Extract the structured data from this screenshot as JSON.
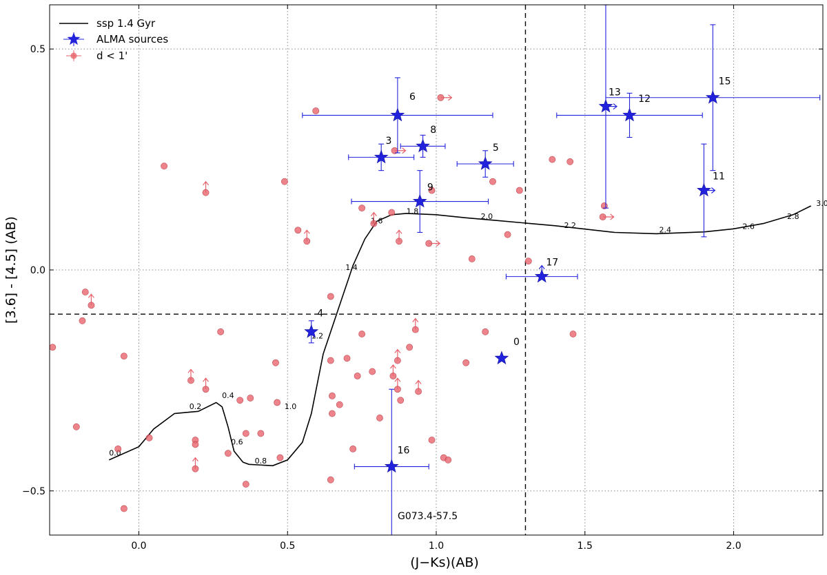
{
  "chart_data": {
    "type": "scatter",
    "xlabel": "(J−Ks)(AB)",
    "ylabel": "[3.6] - [4.5] (AB)",
    "xlim": [
      -0.3,
      2.3
    ],
    "ylim": [
      -0.6,
      0.6
    ],
    "x_ticks": [
      0.0,
      0.5,
      1.0,
      1.5,
      2.0
    ],
    "x_tick_labels": [
      "0.0",
      "0.5",
      "1.0",
      "1.5",
      "2.0"
    ],
    "y_ticks": [
      0.5,
      0.0,
      -0.5
    ],
    "y_tick_labels": [
      "0.5",
      "0.0",
      "−0.5"
    ],
    "grid": true,
    "field_label": "G073.4-57.5",
    "legend_position": "top-left",
    "legend": {
      "ssp": "ssp 1.4 Gyr",
      "alma": "ALMA sources",
      "neighbors": "d < 1'"
    },
    "cut_lines": {
      "x": 1.3,
      "y": -0.1
    },
    "colors": {
      "ssp": "#000000",
      "alma": "#2222dd",
      "neighbors": "#e8606a"
    },
    "ssp_track": {
      "x": [
        -0.1,
        0.0,
        0.05,
        0.12,
        0.2,
        0.26,
        0.28,
        0.3,
        0.32,
        0.35,
        0.37,
        0.45,
        0.5,
        0.55,
        0.58,
        0.62,
        0.68,
        0.72,
        0.76,
        0.8,
        0.85,
        0.9,
        1.0,
        1.1,
        1.2,
        1.4,
        1.6,
        1.74,
        1.9,
        2.0,
        2.1,
        2.2,
        2.26
      ],
      "y": [
        -0.43,
        -0.4,
        -0.36,
        -0.325,
        -0.32,
        -0.3,
        -0.31,
        -0.355,
        -0.41,
        -0.435,
        -0.44,
        -0.443,
        -0.43,
        -0.39,
        -0.325,
        -0.19,
        -0.07,
        0.01,
        0.07,
        0.11,
        0.125,
        0.128,
        0.125,
        0.118,
        0.112,
        0.1,
        0.085,
        0.082,
        0.086,
        0.093,
        0.105,
        0.125,
        0.145
      ]
    },
    "age_labels": [
      {
        "t": "0.0",
        "x": -0.08,
        "y": -0.42
      },
      {
        "t": "0.2",
        "x": 0.19,
        "y": -0.315
      },
      {
        "t": "0.4",
        "x": 0.3,
        "y": -0.29
      },
      {
        "t": "0.6",
        "x": 0.33,
        "y": -0.395
      },
      {
        "t": "0.8",
        "x": 0.41,
        "y": -0.438
      },
      {
        "t": "1.0",
        "x": 0.51,
        "y": -0.315
      },
      {
        "t": "1.2",
        "x": 0.6,
        "y": -0.155
      },
      {
        "t": "1.4",
        "x": 0.715,
        "y": 0.0
      },
      {
        "t": "1.6",
        "x": 0.8,
        "y": 0.105
      },
      {
        "t": "1.8",
        "x": 0.92,
        "y": 0.127
      },
      {
        "t": "2.0",
        "x": 1.17,
        "y": 0.115
      },
      {
        "t": "2.2",
        "x": 1.45,
        "y": 0.095
      },
      {
        "t": "2.4",
        "x": 1.77,
        "y": 0.085
      },
      {
        "t": "2.6",
        "x": 2.05,
        "y": 0.093
      },
      {
        "t": "2.8",
        "x": 2.2,
        "y": 0.115
      },
      {
        "t": "3.0",
        "x": 2.33,
        "y": 0.145
      }
    ],
    "alma_sources": [
      {
        "id": "0",
        "x": 1.22,
        "y": -0.2,
        "xerr": 0,
        "yerr": 0,
        "arrow": "",
        "lx": 1.27,
        "ly": -0.17
      },
      {
        "id": "3",
        "x": 0.815,
        "y": 0.255,
        "xerr": 0.11,
        "yerr": 0.03,
        "arrow": "",
        "lx": 0.84,
        "ly": 0.285
      },
      {
        "id": "4",
        "x": 0.58,
        "y": -0.14,
        "xerr": 0,
        "yerr": 0.025,
        "arrow": "",
        "lx": 0.61,
        "ly": -0.105
      },
      {
        "id": "5",
        "x": 1.165,
        "y": 0.24,
        "xerr": 0.095,
        "yerr": 0.03,
        "arrow": "",
        "lx": 1.2,
        "ly": 0.27
      },
      {
        "id": "6",
        "x": 0.87,
        "y": 0.35,
        "xerr": 0.32,
        "yerr": 0.085,
        "arrow": "",
        "lx": 0.92,
        "ly": 0.385
      },
      {
        "id": "8",
        "x": 0.955,
        "y": 0.28,
        "xerr": 0.075,
        "yerr": 0.025,
        "arrow": "",
        "lx": 0.99,
        "ly": 0.31
      },
      {
        "id": "9",
        "x": 0.945,
        "y": 0.155,
        "xerr": 0.23,
        "yerr": 0.07,
        "arrow": "",
        "lx": 0.98,
        "ly": 0.18
      },
      {
        "id": "11",
        "x": 1.9,
        "y": 0.18,
        "xerr": 0,
        "yerr": 0.105,
        "arrow": "right",
        "lx": 1.95,
        "ly": 0.205
      },
      {
        "id": "12",
        "x": 1.65,
        "y": 0.35,
        "xerr": 0.245,
        "yerr": 0.05,
        "arrow": "",
        "lx": 1.7,
        "ly": 0.38
      },
      {
        "id": "13",
        "x": 1.57,
        "y": 0.37,
        "xerr": 0,
        "yerr": 0.23,
        "arrow": "right",
        "lx": 1.6,
        "ly": 0.395
      },
      {
        "id": "15",
        "x": 1.93,
        "y": 0.39,
        "xerr": 0.36,
        "yerr": 0.165,
        "arrow": "",
        "lx": 1.97,
        "ly": 0.42
      },
      {
        "id": "16",
        "x": 0.85,
        "y": -0.445,
        "xerr": 0.125,
        "yerr": 0.175,
        "arrow": "",
        "lx": 0.89,
        "ly": -0.415
      },
      {
        "id": "17",
        "x": 1.355,
        "y": -0.015,
        "xerr": 0.12,
        "yerr": 0,
        "arrow": "up",
        "lx": 1.39,
        "ly": 0.01
      }
    ],
    "neighbors": [
      {
        "x": -0.29,
        "y": -0.175,
        "a": ""
      },
      {
        "x": -0.07,
        "y": -0.405,
        "a": ""
      },
      {
        "x": -0.05,
        "y": -0.54,
        "a": ""
      },
      {
        "x": -0.05,
        "y": -0.195,
        "a": ""
      },
      {
        "x": 0.035,
        "y": -0.38,
        "a": ""
      },
      {
        "x": -0.21,
        "y": -0.355,
        "a": ""
      },
      {
        "x": -0.19,
        "y": -0.115,
        "a": ""
      },
      {
        "x": -0.18,
        "y": -0.05,
        "a": ""
      },
      {
        "x": -0.16,
        "y": -0.08,
        "a": "up"
      },
      {
        "x": 0.085,
        "y": 0.235,
        "a": ""
      },
      {
        "x": 0.175,
        "y": -0.25,
        "a": "up"
      },
      {
        "x": 0.19,
        "y": -0.385,
        "a": ""
      },
      {
        "x": 0.19,
        "y": -0.395,
        "a": ""
      },
      {
        "x": 0.19,
        "y": -0.45,
        "a": "up"
      },
      {
        "x": 0.225,
        "y": -0.27,
        "a": "up"
      },
      {
        "x": 0.225,
        "y": 0.175,
        "a": "up"
      },
      {
        "x": 0.275,
        "y": -0.14,
        "a": ""
      },
      {
        "x": 0.3,
        "y": -0.415,
        "a": ""
      },
      {
        "x": 0.34,
        "y": -0.295,
        "a": ""
      },
      {
        "x": 0.36,
        "y": -0.37,
        "a": ""
      },
      {
        "x": 0.36,
        "y": -0.485,
        "a": ""
      },
      {
        "x": 0.375,
        "y": -0.29,
        "a": ""
      },
      {
        "x": 0.41,
        "y": -0.37,
        "a": ""
      },
      {
        "x": 0.46,
        "y": -0.21,
        "a": ""
      },
      {
        "x": 0.465,
        "y": -0.3,
        "a": ""
      },
      {
        "x": 0.475,
        "y": -0.425,
        "a": ""
      },
      {
        "x": 0.49,
        "y": 0.2,
        "a": ""
      },
      {
        "x": 0.535,
        "y": 0.09,
        "a": ""
      },
      {
        "x": 0.565,
        "y": 0.065,
        "a": "up"
      },
      {
        "x": 0.595,
        "y": 0.36,
        "a": ""
      },
      {
        "x": 0.645,
        "y": -0.06,
        "a": ""
      },
      {
        "x": 0.645,
        "y": -0.205,
        "a": ""
      },
      {
        "x": 0.645,
        "y": -0.475,
        "a": ""
      },
      {
        "x": 0.65,
        "y": -0.285,
        "a": ""
      },
      {
        "x": 0.65,
        "y": -0.325,
        "a": ""
      },
      {
        "x": 0.675,
        "y": -0.305,
        "a": ""
      },
      {
        "x": 0.7,
        "y": -0.2,
        "a": ""
      },
      {
        "x": 0.72,
        "y": -0.405,
        "a": ""
      },
      {
        "x": 0.735,
        "y": -0.24,
        "a": ""
      },
      {
        "x": 0.75,
        "y": 0.14,
        "a": ""
      },
      {
        "x": 0.75,
        "y": -0.145,
        "a": ""
      },
      {
        "x": 0.785,
        "y": -0.23,
        "a": ""
      },
      {
        "x": 0.81,
        "y": -0.335,
        "a": ""
      },
      {
        "x": 0.79,
        "y": 0.105,
        "a": "up"
      },
      {
        "x": 0.85,
        "y": 0.13,
        "a": ""
      },
      {
        "x": 0.855,
        "y": -0.24,
        "a": "up"
      },
      {
        "x": 0.86,
        "y": 0.27,
        "a": "right"
      },
      {
        "x": 0.87,
        "y": -0.27,
        "a": "up"
      },
      {
        "x": 0.87,
        "y": -0.205,
        "a": "up"
      },
      {
        "x": 0.875,
        "y": 0.065,
        "a": "up"
      },
      {
        "x": 0.88,
        "y": -0.295,
        "a": ""
      },
      {
        "x": 0.91,
        "y": -0.175,
        "a": ""
      },
      {
        "x": 0.93,
        "y": -0.135,
        "a": "up"
      },
      {
        "x": 0.94,
        "y": -0.275,
        "a": "up"
      },
      {
        "x": 0.975,
        "y": 0.06,
        "a": "right"
      },
      {
        "x": 0.985,
        "y": 0.18,
        "a": ""
      },
      {
        "x": 0.985,
        "y": -0.385,
        "a": ""
      },
      {
        "x": 1.015,
        "y": 0.39,
        "a": "right"
      },
      {
        "x": 1.025,
        "y": -0.425,
        "a": ""
      },
      {
        "x": 1.04,
        "y": -0.43,
        "a": ""
      },
      {
        "x": 1.1,
        "y": -0.21,
        "a": ""
      },
      {
        "x": 1.12,
        "y": 0.025,
        "a": ""
      },
      {
        "x": 1.165,
        "y": -0.14,
        "a": ""
      },
      {
        "x": 1.19,
        "y": 0.2,
        "a": ""
      },
      {
        "x": 1.24,
        "y": 0.08,
        "a": ""
      },
      {
        "x": 1.28,
        "y": 0.18,
        "a": ""
      },
      {
        "x": 1.31,
        "y": 0.02,
        "a": ""
      },
      {
        "x": 1.39,
        "y": 0.25,
        "a": ""
      },
      {
        "x": 1.45,
        "y": 0.245,
        "a": ""
      },
      {
        "x": 1.46,
        "y": -0.145,
        "a": ""
      },
      {
        "x": 1.56,
        "y": 0.12,
        "a": "right"
      },
      {
        "x": 1.565,
        "y": 0.145,
        "a": ""
      }
    ]
  }
}
